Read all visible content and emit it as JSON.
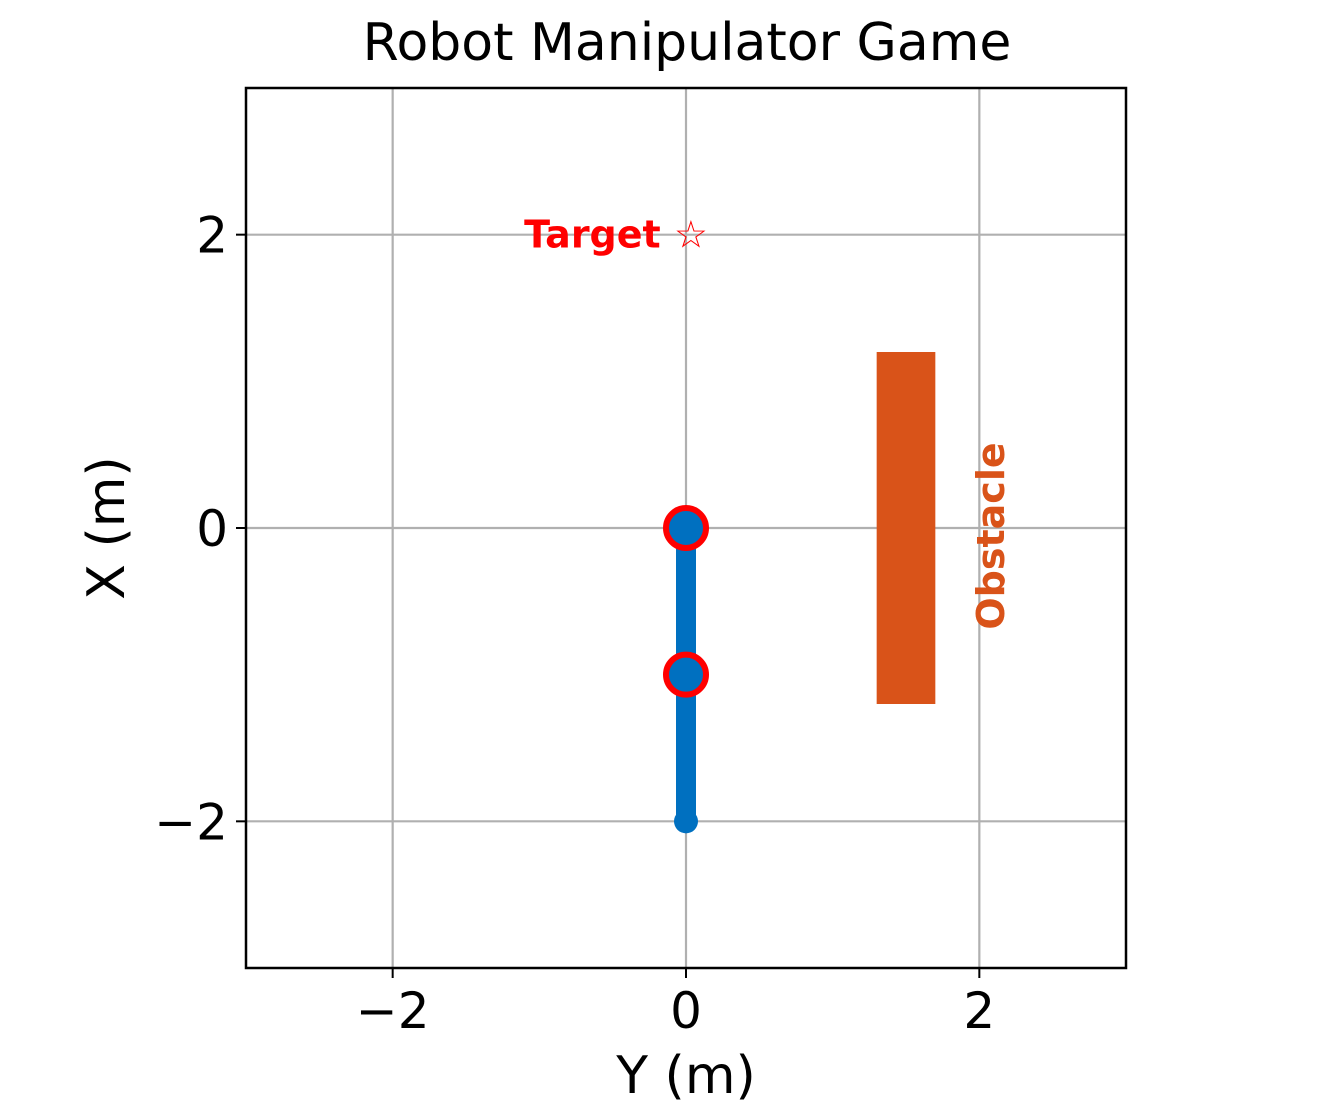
{
  "title": "Robot Manipulator Game",
  "colors": {
    "arm": "#0070c0",
    "joint_ring": "#ff0000",
    "target": "#ff0000",
    "obstacle": "#d95319",
    "grid": "#b0b0b0"
  },
  "chart_data": {
    "type": "scatter",
    "title": "Robot Manipulator Game",
    "xlabel": "Y (m)",
    "ylabel": "X (m)",
    "xlim": [
      -3,
      3
    ],
    "ylim": [
      -3,
      3
    ],
    "grid": true,
    "xticks": [
      -2,
      0,
      2
    ],
    "yticks": [
      -2,
      0,
      2
    ],
    "xtick_labels": [
      "−2",
      "0",
      "2"
    ],
    "ytick_labels": [
      "−2",
      "0",
      "2"
    ],
    "arm": {
      "joints_y": [
        0,
        0,
        0
      ],
      "joints_x": [
        -2,
        -1,
        0
      ],
      "highlighted_joints": [
        1,
        2
      ]
    },
    "target": {
      "y": 0,
      "x": 2,
      "label": "Target ☆",
      "marker": "star"
    },
    "obstacle": {
      "y_min": 1.3,
      "y_max": 1.7,
      "x_min": -1.2,
      "x_max": 1.2,
      "label": "Obstacle"
    }
  }
}
